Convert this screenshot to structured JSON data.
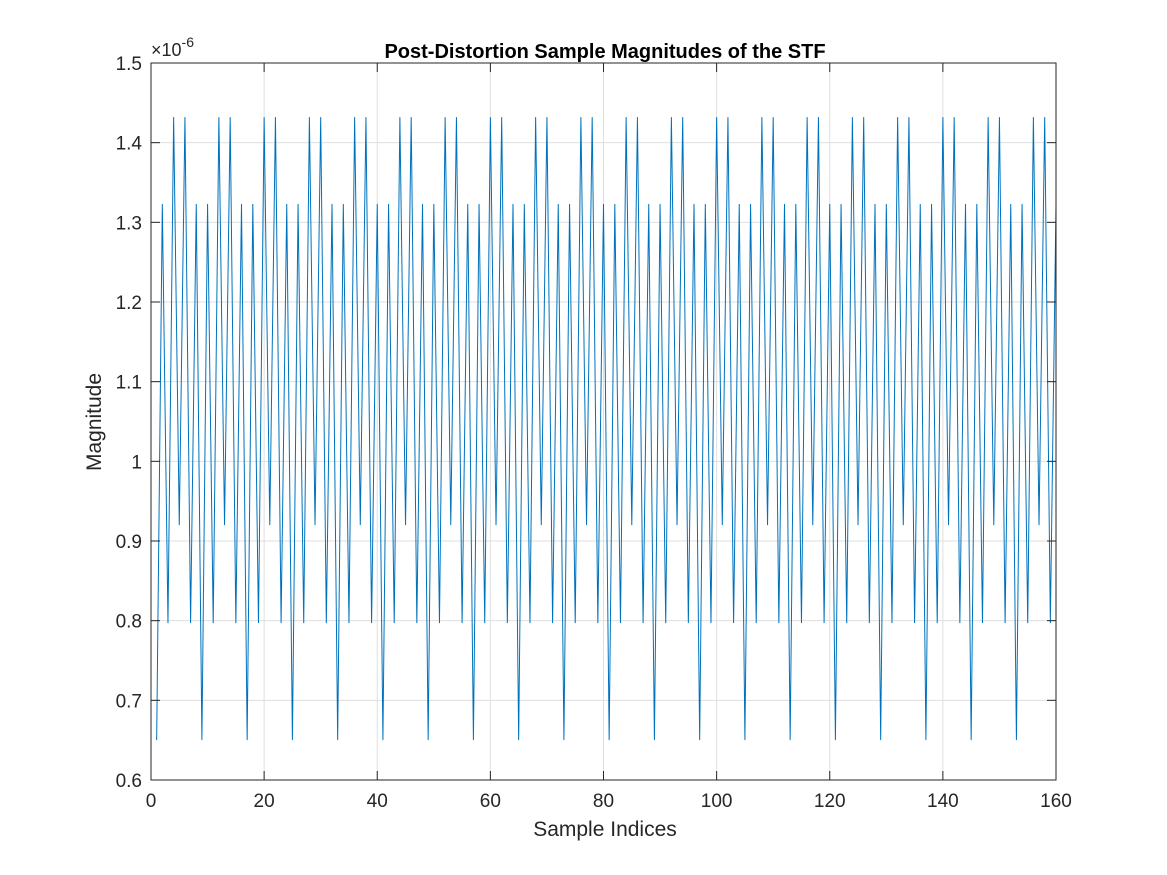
{
  "chart_data": {
    "type": "line",
    "title": "Post-Distortion Sample Magnitudes of the STF",
    "xlabel": "Sample Indices",
    "ylabel": "Magnitude",
    "xlim": [
      0,
      160
    ],
    "ylim": [
      0.6,
      1.5
    ],
    "y_exponent_label": "×10",
    "y_exponent_power": "-6",
    "x_ticks": [
      0,
      20,
      40,
      60,
      80,
      100,
      120,
      140,
      160
    ],
    "x_tick_labels": [
      "0",
      "20",
      "40",
      "60",
      "80",
      "100",
      "120",
      "140",
      "160"
    ],
    "y_ticks": [
      0.6,
      0.7,
      0.8,
      0.9,
      1.0,
      1.1,
      1.2,
      1.3,
      1.4,
      1.5
    ],
    "y_tick_labels": [
      "0.6",
      "0.7",
      "0.8",
      "0.9",
      "1",
      "1.1",
      "1.2",
      "1.3",
      "1.4",
      "1.5"
    ],
    "grid": true,
    "line_color": "#0072BD",
    "series": [
      {
        "x": [
          1,
          2,
          3,
          4,
          5,
          6,
          7,
          8,
          9,
          10,
          11,
          12,
          13,
          14,
          15,
          16,
          17,
          18,
          19,
          20,
          21,
          22,
          23,
          24,
          25,
          26,
          27,
          28,
          29,
          30,
          31,
          32,
          33,
          34,
          35,
          36,
          37,
          38,
          39,
          40,
          41,
          42,
          43,
          44,
          45,
          46,
          47,
          48,
          49,
          50,
          51,
          52,
          53,
          54,
          55,
          56,
          57,
          58,
          59,
          60,
          61,
          62,
          63,
          64,
          65,
          66,
          67,
          68,
          69,
          70,
          71,
          72,
          73,
          74,
          75,
          76,
          77,
          78,
          79,
          80,
          81,
          82,
          83,
          84,
          85,
          86,
          87,
          88,
          89,
          90,
          91,
          92,
          93,
          94,
          95,
          96,
          97,
          98,
          99,
          100,
          101,
          102,
          103,
          104,
          105,
          106,
          107,
          108,
          109,
          110,
          111,
          112,
          113,
          114,
          115,
          116,
          117,
          118,
          119,
          120,
          121,
          122,
          123,
          124,
          125,
          126,
          127,
          128,
          129,
          130,
          131,
          132,
          133,
          134,
          135,
          136,
          137,
          138,
          139,
          140,
          141,
          142,
          143,
          144,
          145,
          146,
          147,
          148,
          149,
          150,
          151,
          152,
          153,
          154,
          155,
          156,
          157,
          158,
          159,
          160
        ],
        "y": [
          0.65,
          1.323,
          0.797,
          1.432,
          0.92,
          1.432,
          0.797,
          1.323,
          0.65,
          1.323,
          0.797,
          1.432,
          0.92,
          1.432,
          0.797,
          1.323,
          0.65,
          1.323,
          0.797,
          1.432,
          0.92,
          1.432,
          0.797,
          1.323,
          0.65,
          1.323,
          0.797,
          1.432,
          0.92,
          1.432,
          0.797,
          1.323,
          0.65,
          1.323,
          0.797,
          1.432,
          0.92,
          1.432,
          0.797,
          1.323,
          0.65,
          1.323,
          0.797,
          1.432,
          0.92,
          1.432,
          0.797,
          1.323,
          0.65,
          1.323,
          0.797,
          1.432,
          0.92,
          1.432,
          0.797,
          1.323,
          0.65,
          1.323,
          0.797,
          1.432,
          0.92,
          1.432,
          0.797,
          1.323,
          0.65,
          1.323,
          0.797,
          1.432,
          0.92,
          1.432,
          0.797,
          1.323,
          0.65,
          1.323,
          0.797,
          1.432,
          0.92,
          1.432,
          0.797,
          1.323,
          0.65,
          1.323,
          0.797,
          1.432,
          0.92,
          1.432,
          0.797,
          1.323,
          0.65,
          1.323,
          0.797,
          1.432,
          0.92,
          1.432,
          0.797,
          1.323,
          0.65,
          1.323,
          0.797,
          1.432,
          0.92,
          1.432,
          0.797,
          1.323,
          0.65,
          1.323,
          0.797,
          1.432,
          0.92,
          1.432,
          0.797,
          1.323,
          0.65,
          1.323,
          0.797,
          1.432,
          0.92,
          1.432,
          0.797,
          1.323,
          0.65,
          1.323,
          0.797,
          1.432,
          0.92,
          1.432,
          0.797,
          1.323,
          0.65,
          1.323,
          0.797,
          1.432,
          0.92,
          1.432,
          0.797,
          1.323,
          0.65,
          1.323,
          0.797,
          1.432,
          0.92,
          1.432,
          0.797,
          1.323,
          0.65,
          1.323,
          0.797,
          1.432,
          0.92,
          1.432,
          0.797,
          1.323,
          0.65,
          1.323,
          0.797,
          1.432,
          0.92,
          1.432,
          0.797,
          1.323
        ]
      }
    ]
  }
}
